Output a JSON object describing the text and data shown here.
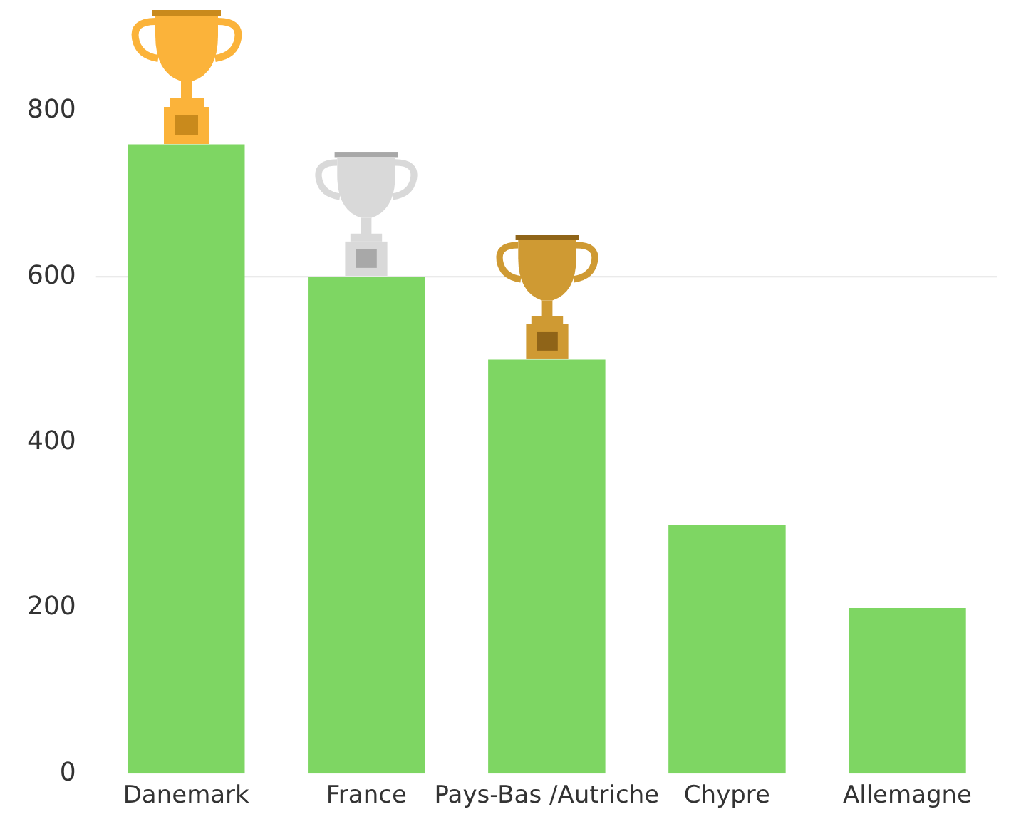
{
  "chart_data": {
    "type": "bar",
    "categories": [
      "Danemark",
      "France",
      "Pays-Bas /Autriche",
      "Chypre",
      "Allemagne"
    ],
    "values": [
      760,
      600,
      500,
      300,
      200
    ],
    "color": "#7ed663",
    "ylim": [
      0,
      800
    ],
    "yticks": [
      0,
      200,
      400,
      600,
      800
    ],
    "grid": false,
    "ref_lines": [
      {
        "axis": "y",
        "value": 600,
        "label": null,
        "color": "#e3e3e3"
      }
    ],
    "legend": false
  }
}
